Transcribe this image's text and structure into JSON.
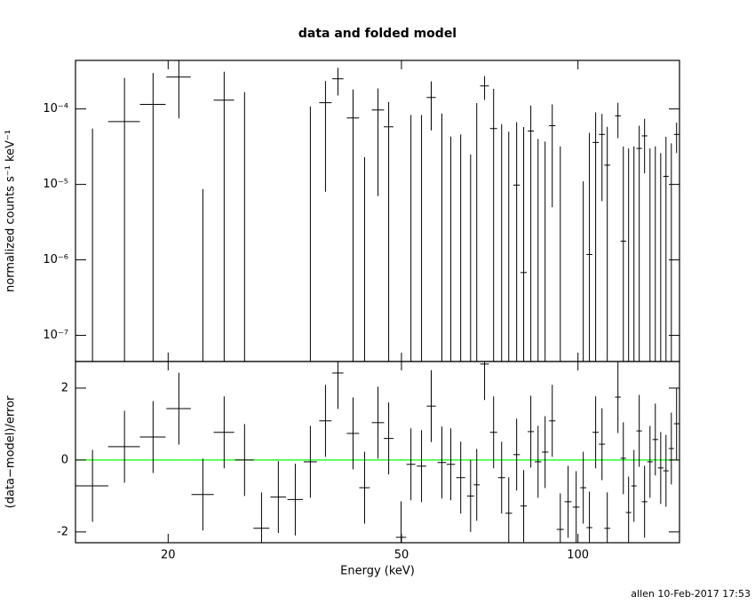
{
  "chart_data": [
    {
      "type": "errorbar",
      "title": "data and folded model",
      "ylabel": "normalized counts s⁻¹ keV⁻¹",
      "log_x": true,
      "log_y": true,
      "color": "#000000",
      "xlim": [
        13.9,
        149
      ],
      "xticks": [
        20,
        50,
        100
      ],
      "ylim": [
        4.5e-08,
        0.00044
      ],
      "yticks": [
        {
          "value": 0.0001,
          "label": "10⁻⁴"
        },
        {
          "value": 1e-05,
          "label": "10⁻⁵"
        },
        {
          "value": 1e-06,
          "label": "10⁻⁶"
        },
        {
          "value": 1e-07,
          "label": "10⁻⁷"
        }
      ],
      "x": [
        14.86,
        16.85,
        18.85,
        20.86,
        22.92,
        24.92,
        27.0,
        28.86,
        30.83,
        32.95,
        34.96,
        37.1,
        38.96,
        41.34,
        43.26,
        45.6,
        47.55,
        49.93,
        51.9,
        54.1,
        56.2,
        58.6,
        60.7,
        63.1,
        65.6,
        67.2,
        69.3,
        71.8,
        74.1,
        76.2,
        78.6,
        80.8,
        83.1,
        85.5,
        87.9,
        90.4,
        93.3,
        96.2,
        99.3,
        102.1,
        104.6,
        107.2,
        109.9,
        112.2,
        117.0,
        119.5,
        122.0,
        124.6,
        127.2,
        129.9,
        132.7,
        135.5,
        138.4,
        141.3,
        144.3,
        147.3
      ],
      "xerr": [
        0.95,
        1.05,
        0.95,
        1.0,
        1.0,
        1.0,
        1.0,
        0.9,
        0.95,
        1.0,
        0.9,
        0.9,
        0.85,
        1.0,
        0.9,
        1.1,
        0.9,
        1.0,
        0.9,
        1.0,
        1.0,
        1.0,
        1.0,
        1.1,
        0.9,
        0.8,
        1.2,
        1.0,
        1.0,
        1.0,
        1.0,
        1.0,
        1.0,
        1.1,
        1.1,
        1.1,
        1.3,
        1.3,
        1.3,
        1.2,
        1.2,
        1.3,
        1.3,
        1.3,
        1.3,
        1.3,
        1.3,
        1.3,
        1.4,
        1.4,
        1.4,
        1.5,
        1.5,
        1.5,
        1.5,
        1.5
      ],
      "values": [
        -2e-05,
        6.8e-05,
        0.000115,
        0.000265,
        -1e-05,
        0.000131,
        -3e-05,
        -5e-05,
        -5e-05,
        -5e-05,
        -2e-05,
        0.000121,
        0.000251,
        7.6e-05,
        -1e-05,
        9.7e-05,
        5.8e-05,
        -8e-05,
        -1e-05,
        -1e-05,
        0.000142,
        -1e-05,
        -1e-05,
        -1e-05,
        -1e-05,
        -1e-05,
        0.000202,
        5.5e-05,
        -1e-05,
        -1e-05,
        9.8e-06,
        6.8e-07,
        5.1e-05,
        -1e-05,
        -1e-05,
        6e-05,
        -1e-05,
        -4e-05,
        -3e-05,
        -1e-05,
        1.18e-06,
        3.6e-05,
        4.6e-05,
        1.8e-05,
        8.1e-05,
        1.77e-06,
        -1e-05,
        -1e-05,
        3e-05,
        4.4e-05,
        -1e-05,
        -1e-05,
        -1e-05,
        1.28e-05,
        -1e-05,
        4.6e-05
      ],
      "errors": [
        7.5e-05,
        0.00019,
        0.000185,
        0.00019,
        1.87e-05,
        0.00018,
        0.000197,
        3e-05,
        3e-05,
        3e-05,
        0.000128,
        0.000113,
        0.0001,
        0.000105,
        3.3e-05,
        9e-05,
        6.6e-05,
        3.5e-05,
        9.3e-05,
        9.3e-05,
        9e-05,
        9.7e-05,
        5.3e-05,
        5.6e-05,
        3.5e-05,
        0.00013,
        7e-05,
        0.00013,
        7.3e-05,
        6e-05,
        5.7e-05,
        5.7e-05,
        6e-05,
        5e-05,
        4.7e-05,
        5.5e-05,
        4.2e-05,
        3.9e-05,
        2.9e-05,
        2.1e-05,
        4.7e-05,
        5.4e-05,
        4e-05,
        4e-05,
        4e-05,
        3e-05,
        4e-05,
        4.2e-05,
        3e-05,
        3e-05,
        4e-05,
        4.2e-05,
        3.6e-05,
        3e-05,
        4.5e-05,
        2e-05
      ]
    },
    {
      "type": "errorbar",
      "xlabel": "Energy (keV)",
      "ylabel": "(data−model)/error",
      "log_x": true,
      "log_y": false,
      "color": "#000000",
      "xlim": [
        13.9,
        149
      ],
      "xticks": [
        20,
        50,
        100
      ],
      "ylim": [
        -2.3,
        2.74
      ],
      "yticks": [
        -2,
        0,
        2
      ],
      "reference_line": {
        "value": 0,
        "color": "#00ff00"
      },
      "x": [
        14.86,
        16.85,
        18.85,
        20.86,
        22.92,
        24.92,
        27.0,
        28.86,
        30.83,
        32.95,
        34.96,
        37.1,
        38.96,
        41.34,
        43.26,
        45.6,
        47.55,
        49.93,
        51.9,
        54.1,
        56.2,
        58.6,
        60.7,
        63.1,
        65.6,
        67.2,
        69.3,
        71.8,
        74.1,
        76.2,
        78.6,
        80.8,
        83.1,
        85.5,
        87.9,
        90.4,
        93.3,
        96.2,
        99.3,
        102.1,
        104.6,
        107.2,
        109.9,
        112.2,
        117.0,
        119.5,
        122.0,
        124.6,
        127.2,
        129.9,
        132.7,
        135.5,
        138.4,
        141.3,
        144.3,
        147.3
      ],
      "xerr": [
        0.95,
        1.05,
        0.95,
        1.0,
        1.0,
        1.0,
        1.0,
        0.9,
        0.95,
        1.0,
        0.9,
        0.9,
        0.85,
        1.0,
        0.9,
        1.1,
        0.9,
        1.0,
        0.9,
        1.0,
        1.0,
        1.0,
        1.0,
        1.1,
        0.9,
        0.8,
        1.2,
        1.0,
        1.0,
        1.0,
        1.0,
        1.0,
        1.0,
        1.1,
        1.1,
        1.1,
        1.3,
        1.3,
        1.3,
        1.2,
        1.2,
        1.3,
        1.3,
        1.3,
        1.3,
        1.3,
        1.3,
        1.3,
        1.4,
        1.4,
        1.4,
        1.5,
        1.5,
        1.5,
        1.5,
        1.5
      ],
      "values": [
        -0.72,
        0.37,
        0.64,
        1.43,
        -0.96,
        0.77,
        0.0,
        -1.9,
        -1.03,
        -1.1,
        -0.05,
        1.09,
        2.42,
        0.74,
        -0.77,
        1.04,
        0.6,
        -2.15,
        -0.12,
        -0.17,
        1.5,
        -0.07,
        -0.12,
        -0.49,
        -1.0,
        -0.69,
        2.67,
        0.77,
        -0.49,
        -1.48,
        0.15,
        -1.28,
        0.79,
        -0.05,
        0.22,
        1.09,
        -1.93,
        -1.16,
        -1.31,
        -0.77,
        -1.88,
        0.77,
        0.44,
        -1.9,
        1.75,
        0.05,
        -1.46,
        -0.72,
        0.81,
        -1.16,
        -0.05,
        0.57,
        -0.22,
        -0.3,
        0.32,
        1.01
      ],
      "errors": [
        1,
        1,
        1,
        1,
        1,
        1,
        1,
        1,
        1,
        1,
        1,
        1,
        1,
        1,
        1,
        1,
        1,
        1,
        1,
        1,
        1,
        1,
        1,
        1,
        1,
        1,
        1,
        1,
        1,
        1,
        1,
        1,
        1,
        1,
        1,
        1,
        1,
        1,
        1,
        1,
        1,
        1,
        1,
        1,
        1,
        1,
        1,
        1,
        1,
        1,
        1,
        1,
        1,
        1,
        1,
        1
      ]
    }
  ],
  "footer": "allen 10-Feb-2017 17:53"
}
